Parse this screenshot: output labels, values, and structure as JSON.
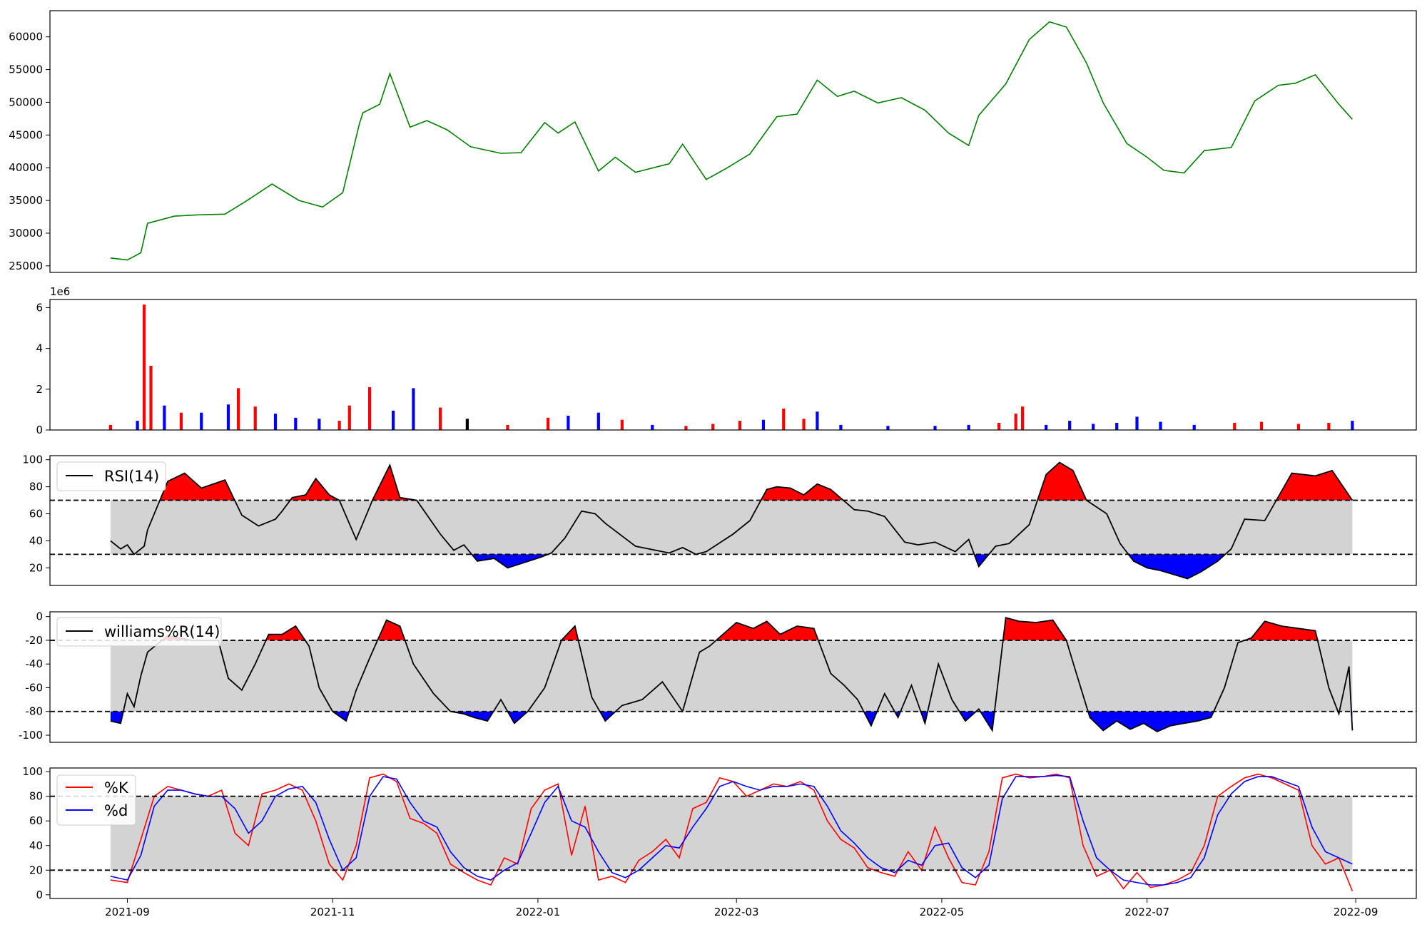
{
  "x_ticks": [
    "2021-09",
    "2021-11",
    "2022-01",
    "2022-03",
    "2022-05",
    "2022-07",
    "2022-09"
  ],
  "chart_data": [
    {
      "type": "line",
      "name": "price",
      "ylim": [
        24000,
        64000
      ],
      "yticks": [
        "25000",
        "30000",
        "35000",
        "40000",
        "45000",
        "50000",
        "55000",
        "60000"
      ],
      "line_color": "#008000",
      "x": [
        "2021-08-27",
        "2021-09-01",
        "2021-09-05",
        "2021-09-07",
        "2021-09-15",
        "2021-09-22",
        "2021-09-30",
        "2021-10-06",
        "2021-10-14",
        "2021-10-22",
        "2021-10-29",
        "2021-11-04",
        "2021-11-09",
        "2021-11-10",
        "2021-11-15",
        "2021-11-18",
        "2021-11-24",
        "2021-11-29",
        "2021-12-05",
        "2021-12-12",
        "2021-12-21",
        "2021-12-27",
        "2022-01-03",
        "2022-01-07",
        "2022-01-12",
        "2022-01-19",
        "2022-01-24",
        "2022-01-30",
        "2022-02-09",
        "2022-02-13",
        "2022-02-20",
        "2022-02-26",
        "2022-03-05",
        "2022-03-13",
        "2022-03-19",
        "2022-03-25",
        "2022-03-31",
        "2022-04-05",
        "2022-04-12",
        "2022-04-19",
        "2022-04-26",
        "2022-05-03",
        "2022-05-09",
        "2022-05-12",
        "2022-05-20",
        "2022-05-27",
        "2022-06-02",
        "2022-06-07",
        "2022-06-13",
        "2022-06-18",
        "2022-06-25",
        "2022-07-01",
        "2022-07-06",
        "2022-07-12",
        "2022-07-18",
        "2022-07-26",
        "2022-08-02",
        "2022-08-09",
        "2022-08-14",
        "2022-08-20",
        "2022-08-27",
        "2022-08-31"
      ],
      "y": [
        26200,
        25900,
        27000,
        31500,
        32600,
        32800,
        32900,
        34800,
        37500,
        35000,
        34000,
        36200,
        46800,
        48400,
        49700,
        54400,
        46200,
        47200,
        45800,
        43200,
        42200,
        42300,
        46900,
        45300,
        47000,
        39500,
        41600,
        39300,
        40600,
        43600,
        38200,
        39900,
        42100,
        47800,
        48200,
        53400,
        50900,
        51700,
        49900,
        50700,
        48800,
        45300,
        43400,
        48000,
        52800,
        59600,
        62300,
        61500,
        56000,
        49900,
        43700,
        41600,
        39600,
        39200,
        42600,
        43100,
        50200,
        52600,
        52900,
        54200,
        49700,
        47400
      ]
    },
    {
      "type": "bar",
      "name": "volume",
      "ylim": [
        0,
        6400000
      ],
      "yticks": [
        "0",
        "2",
        "4",
        "6"
      ],
      "offset_label": "1e6",
      "colors": {
        "up": "#ff0000",
        "down": "#0000ff",
        "flat": "#000000"
      },
      "x": [
        "2021-08-27",
        "2021-09-04",
        "2021-09-06",
        "2021-09-08",
        "2021-09-12",
        "2021-09-17",
        "2021-09-23",
        "2021-10-01",
        "2021-10-04",
        "2021-10-09",
        "2021-10-15",
        "2021-10-21",
        "2021-10-28",
        "2021-11-03",
        "2021-11-06",
        "2021-11-12",
        "2021-11-19",
        "2021-11-25",
        "2021-12-03",
        "2021-12-11",
        "2021-12-23",
        "2022-01-04",
        "2022-01-10",
        "2022-01-19",
        "2022-01-26",
        "2022-02-04",
        "2022-02-14",
        "2022-02-22",
        "2022-03-02",
        "2022-03-09",
        "2022-03-15",
        "2022-03-21",
        "2022-03-25",
        "2022-04-01",
        "2022-04-15",
        "2022-04-29",
        "2022-05-09",
        "2022-05-18",
        "2022-05-23",
        "2022-05-25",
        "2022-06-01",
        "2022-06-08",
        "2022-06-15",
        "2022-06-22",
        "2022-06-28",
        "2022-07-05",
        "2022-07-15",
        "2022-07-27",
        "2022-08-04",
        "2022-08-15",
        "2022-08-24",
        "2022-08-31"
      ],
      "values": [
        250000,
        450000,
        6150000,
        3150000,
        1200000,
        850000,
        850000,
        1250000,
        2050000,
        1150000,
        800000,
        600000,
        550000,
        450000,
        1200000,
        2100000,
        950000,
        2050000,
        1100000,
        550000,
        250000,
        600000,
        700000,
        850000,
        500000,
        250000,
        200000,
        300000,
        450000,
        500000,
        1050000,
        550000,
        900000,
        250000,
        200000,
        200000,
        250000,
        350000,
        800000,
        1150000,
        250000,
        450000,
        300000,
        350000,
        650000,
        400000,
        250000,
        350000,
        400000,
        300000,
        350000,
        450000
      ],
      "dirs": [
        "up",
        "down",
        "up",
        "up",
        "down",
        "up",
        "down",
        "down",
        "up",
        "up",
        "down",
        "down",
        "down",
        "up",
        "up",
        "up",
        "down",
        "down",
        "up",
        "flat",
        "up",
        "up",
        "down",
        "down",
        "up",
        "down",
        "up",
        "up",
        "up",
        "down",
        "up",
        "up",
        "down",
        "down",
        "down",
        "down",
        "down",
        "up",
        "up",
        "up",
        "down",
        "down",
        "down",
        "down",
        "down",
        "down",
        "down",
        "up",
        "up",
        "up",
        "up",
        "down"
      ]
    },
    {
      "type": "line",
      "name": "RSI(14)",
      "legend": [
        "RSI(14)"
      ],
      "ylim": [
        7,
        103
      ],
      "yticks": [
        "20",
        "40",
        "60",
        "80",
        "100"
      ],
      "thresholds": [
        70,
        30
      ],
      "fill_colors": {
        "band": "#d3d3d3",
        "over": "#ff0000",
        "under": "#0000ff"
      },
      "x": [
        "2021-08-27",
        "2021-08-30",
        "2021-09-01",
        "2021-09-03",
        "2021-09-06",
        "2021-09-07",
        "2021-09-13",
        "2021-09-18",
        "2021-09-23",
        "2021-09-30",
        "2021-10-05",
        "2021-10-10",
        "2021-10-15",
        "2021-10-17",
        "2021-10-20",
        "2021-10-24",
        "2021-10-27",
        "2021-10-31",
        "2021-11-03",
        "2021-11-08",
        "2021-11-13",
        "2021-11-18",
        "2021-11-21",
        "2021-11-26",
        "2021-12-03",
        "2021-12-07",
        "2021-12-10",
        "2021-12-14",
        "2021-12-19",
        "2021-12-23",
        "2021-12-28",
        "2022-01-02",
        "2022-01-05",
        "2022-01-09",
        "2022-01-14",
        "2022-01-18",
        "2022-01-21",
        "2022-01-30",
        "2022-02-09",
        "2022-02-13",
        "2022-02-17",
        "2022-02-20",
        "2022-02-28",
        "2022-03-05",
        "2022-03-10",
        "2022-03-13",
        "2022-03-17",
        "2022-03-21",
        "2022-03-25",
        "2022-03-29",
        "2022-04-05",
        "2022-04-09",
        "2022-04-14",
        "2022-04-20",
        "2022-04-24",
        "2022-04-29",
        "2022-05-05",
        "2022-05-09",
        "2022-05-12",
        "2022-05-17",
        "2022-05-21",
        "2022-05-27",
        "2022-06-01",
        "2022-06-05",
        "2022-06-09",
        "2022-06-13",
        "2022-06-19",
        "2022-06-23",
        "2022-06-27",
        "2022-07-01",
        "2022-07-05",
        "2022-07-09",
        "2022-07-13",
        "2022-07-17",
        "2022-07-22",
        "2022-07-26",
        "2022-07-30",
        "2022-08-05",
        "2022-08-13",
        "2022-08-20",
        "2022-08-25",
        "2022-08-31"
      ],
      "y": [
        40,
        34,
        37,
        30,
        36,
        48,
        84,
        90,
        79,
        85,
        59,
        51,
        56,
        62,
        72,
        74,
        86,
        74,
        70,
        41,
        71,
        96,
        72,
        70,
        45,
        33,
        37,
        25,
        27,
        20,
        24,
        28,
        31,
        42,
        62,
        60,
        53,
        36,
        31,
        35,
        30,
        32,
        45,
        55,
        78,
        80,
        79,
        74,
        82,
        78,
        63,
        62,
        58,
        39,
        37,
        39,
        32,
        41,
        21,
        36,
        38,
        52,
        89,
        98,
        92,
        70,
        60,
        38,
        25,
        20,
        18,
        15,
        12,
        17,
        25,
        34,
        56,
        55,
        90,
        88,
        92,
        70
      ]
    },
    {
      "type": "line",
      "name": "williams%R(14)",
      "legend": [
        "williams%R(14)"
      ],
      "ylim": [
        -106,
        4
      ],
      "yticks": [
        "0",
        "-20",
        "-40",
        "-60",
        "-80",
        "-100"
      ],
      "thresholds": [
        -20,
        -80
      ],
      "fill_colors": {
        "band": "#d3d3d3",
        "over": "#ff0000",
        "under": "#0000ff"
      },
      "x": [
        "2021-08-27",
        "2021-08-30",
        "2021-09-01",
        "2021-09-03",
        "2021-09-05",
        "2021-09-07",
        "2021-09-13",
        "2021-09-20",
        "2021-09-28",
        "2021-10-01",
        "2021-10-05",
        "2021-10-09",
        "2021-10-13",
        "2021-10-17",
        "2021-10-21",
        "2021-10-25",
        "2021-10-28",
        "2021-11-01",
        "2021-11-05",
        "2021-11-08",
        "2021-11-12",
        "2021-11-17",
        "2021-11-21",
        "2021-11-25",
        "2021-12-01",
        "2021-12-06",
        "2021-12-10",
        "2021-12-13",
        "2021-12-17",
        "2021-12-21",
        "2021-12-25",
        "2021-12-29",
        "2022-01-03",
        "2022-01-08",
        "2022-01-12",
        "2022-01-17",
        "2022-01-21",
        "2022-01-26",
        "2022-02-01",
        "2022-02-07",
        "2022-02-13",
        "2022-02-18",
        "2022-02-21",
        "2022-02-25",
        "2022-03-01",
        "2022-03-06",
        "2022-03-10",
        "2022-03-14",
        "2022-03-19",
        "2022-03-24",
        "2022-03-29",
        "2022-04-02",
        "2022-04-06",
        "2022-04-10",
        "2022-04-14",
        "2022-04-18",
        "2022-04-22",
        "2022-04-26",
        "2022-04-30",
        "2022-05-04",
        "2022-05-08",
        "2022-05-12",
        "2022-05-16",
        "2022-05-20",
        "2022-05-24",
        "2022-05-29",
        "2022-06-03",
        "2022-06-07",
        "2022-06-10",
        "2022-06-14",
        "2022-06-18",
        "2022-06-22",
        "2022-06-26",
        "2022-06-30",
        "2022-07-04",
        "2022-07-08",
        "2022-07-12",
        "2022-07-16",
        "2022-07-20",
        "2022-07-24",
        "2022-07-28",
        "2022-08-01",
        "2022-08-05",
        "2022-08-10",
        "2022-08-15",
        "2022-08-20",
        "2022-08-24",
        "2022-08-27",
        "2022-08-30",
        "2022-08-31"
      ],
      "y": [
        -88,
        -90,
        -65,
        -76,
        -50,
        -30,
        -16,
        -20,
        -20,
        -52,
        -62,
        -40,
        -15,
        -15,
        -8,
        -25,
        -60,
        -80,
        -88,
        -62,
        -35,
        -3,
        -8,
        -40,
        -65,
        -80,
        -82,
        -85,
        -88,
        -70,
        -90,
        -80,
        -60,
        -20,
        -8,
        -68,
        -88,
        -75,
        -70,
        -55,
        -80,
        -30,
        -25,
        -15,
        -5,
        -10,
        -4,
        -15,
        -8,
        -10,
        -48,
        -58,
        -70,
        -92,
        -65,
        -85,
        -58,
        -90,
        -40,
        -70,
        -88,
        -78,
        -96,
        -1,
        -4,
        -5,
        -3,
        -20,
        -48,
        -85,
        -96,
        -88,
        -95,
        -90,
        -97,
        -92,
        -90,
        -88,
        -85,
        -60,
        -22,
        -18,
        -4,
        -8,
        -10,
        -12,
        -60,
        -82,
        -42,
        -96
      ]
    },
    {
      "type": "line",
      "name": "stochastic",
      "legend": [
        "%K",
        "%d"
      ],
      "ylim": [
        -3,
        103
      ],
      "yticks": [
        "0",
        "20",
        "40",
        "60",
        "80",
        "100"
      ],
      "thresholds": [
        80,
        20
      ],
      "fill_colors": {
        "band": "#d3d3d3"
      },
      "x": [
        "2021-08-27",
        "2021-09-01",
        "2021-09-05",
        "2021-09-09",
        "2021-09-13",
        "2021-09-17",
        "2021-09-21",
        "2021-09-25",
        "2021-09-29",
        "2021-10-03",
        "2021-10-07",
        "2021-10-11",
        "2021-10-15",
        "2021-10-19",
        "2021-10-23",
        "2021-10-27",
        "2021-10-31",
        "2021-11-04",
        "2021-11-08",
        "2021-11-12",
        "2021-11-16",
        "2021-11-20",
        "2021-11-24",
        "2021-11-28",
        "2021-12-02",
        "2021-12-06",
        "2021-12-10",
        "2021-12-14",
        "2021-12-18",
        "2021-12-22",
        "2021-12-26",
        "2021-12-30",
        "2022-01-03",
        "2022-01-07",
        "2022-01-11",
        "2022-01-15",
        "2022-01-19",
        "2022-01-23",
        "2022-01-27",
        "2022-01-31",
        "2022-02-04",
        "2022-02-08",
        "2022-02-12",
        "2022-02-16",
        "2022-02-20",
        "2022-02-24",
        "2022-02-28",
        "2022-03-04",
        "2022-03-08",
        "2022-03-12",
        "2022-03-16",
        "2022-03-20",
        "2022-03-24",
        "2022-03-28",
        "2022-04-01",
        "2022-04-05",
        "2022-04-09",
        "2022-04-13",
        "2022-04-17",
        "2022-04-21",
        "2022-04-25",
        "2022-04-29",
        "2022-05-03",
        "2022-05-07",
        "2022-05-11",
        "2022-05-15",
        "2022-05-19",
        "2022-05-23",
        "2022-05-27",
        "2022-05-31",
        "2022-06-04",
        "2022-06-08",
        "2022-06-12",
        "2022-06-16",
        "2022-06-20",
        "2022-06-24",
        "2022-06-28",
        "2022-07-02",
        "2022-07-06",
        "2022-07-10",
        "2022-07-14",
        "2022-07-18",
        "2022-07-22",
        "2022-07-26",
        "2022-07-30",
        "2022-08-03",
        "2022-08-07",
        "2022-08-11",
        "2022-08-15",
        "2022-08-19",
        "2022-08-23",
        "2022-08-27",
        "2022-08-31"
      ],
      "series": [
        {
          "name": "%K",
          "color": "#ff0000",
          "values": [
            12,
            10,
            45,
            80,
            88,
            85,
            82,
            80,
            85,
            50,
            40,
            82,
            85,
            90,
            85,
            60,
            25,
            12,
            40,
            95,
            98,
            92,
            62,
            58,
            50,
            25,
            18,
            12,
            8,
            30,
            25,
            70,
            85,
            90,
            32,
            72,
            12,
            15,
            10,
            28,
            35,
            45,
            30,
            70,
            75,
            95,
            92,
            80,
            85,
            90,
            88,
            92,
            85,
            60,
            45,
            38,
            22,
            18,
            15,
            35,
            20,
            55,
            30,
            10,
            8,
            35,
            95,
            98,
            95,
            96,
            98,
            95,
            40,
            15,
            20,
            5,
            18,
            6,
            8,
            12,
            18,
            40,
            80,
            88,
            95,
            98,
            95,
            90,
            85,
            40,
            25,
            30,
            3
          ]
        },
        {
          "name": "%d",
          "color": "#0000ff",
          "values": [
            15,
            12,
            32,
            72,
            85,
            85,
            82,
            80,
            80,
            70,
            50,
            60,
            80,
            86,
            88,
            75,
            45,
            20,
            30,
            80,
            96,
            94,
            75,
            60,
            55,
            35,
            22,
            15,
            12,
            20,
            26,
            50,
            75,
            88,
            60,
            55,
            35,
            18,
            14,
            20,
            30,
            40,
            38,
            55,
            70,
            88,
            92,
            88,
            85,
            88,
            88,
            90,
            88,
            72,
            52,
            42,
            30,
            22,
            18,
            28,
            24,
            40,
            42,
            22,
            14,
            24,
            78,
            96,
            96,
            96,
            97,
            96,
            60,
            30,
            20,
            12,
            10,
            8,
            8,
            10,
            14,
            30,
            65,
            82,
            92,
            96,
            96,
            92,
            88,
            55,
            35,
            30,
            25
          ]
        }
      ]
    }
  ]
}
